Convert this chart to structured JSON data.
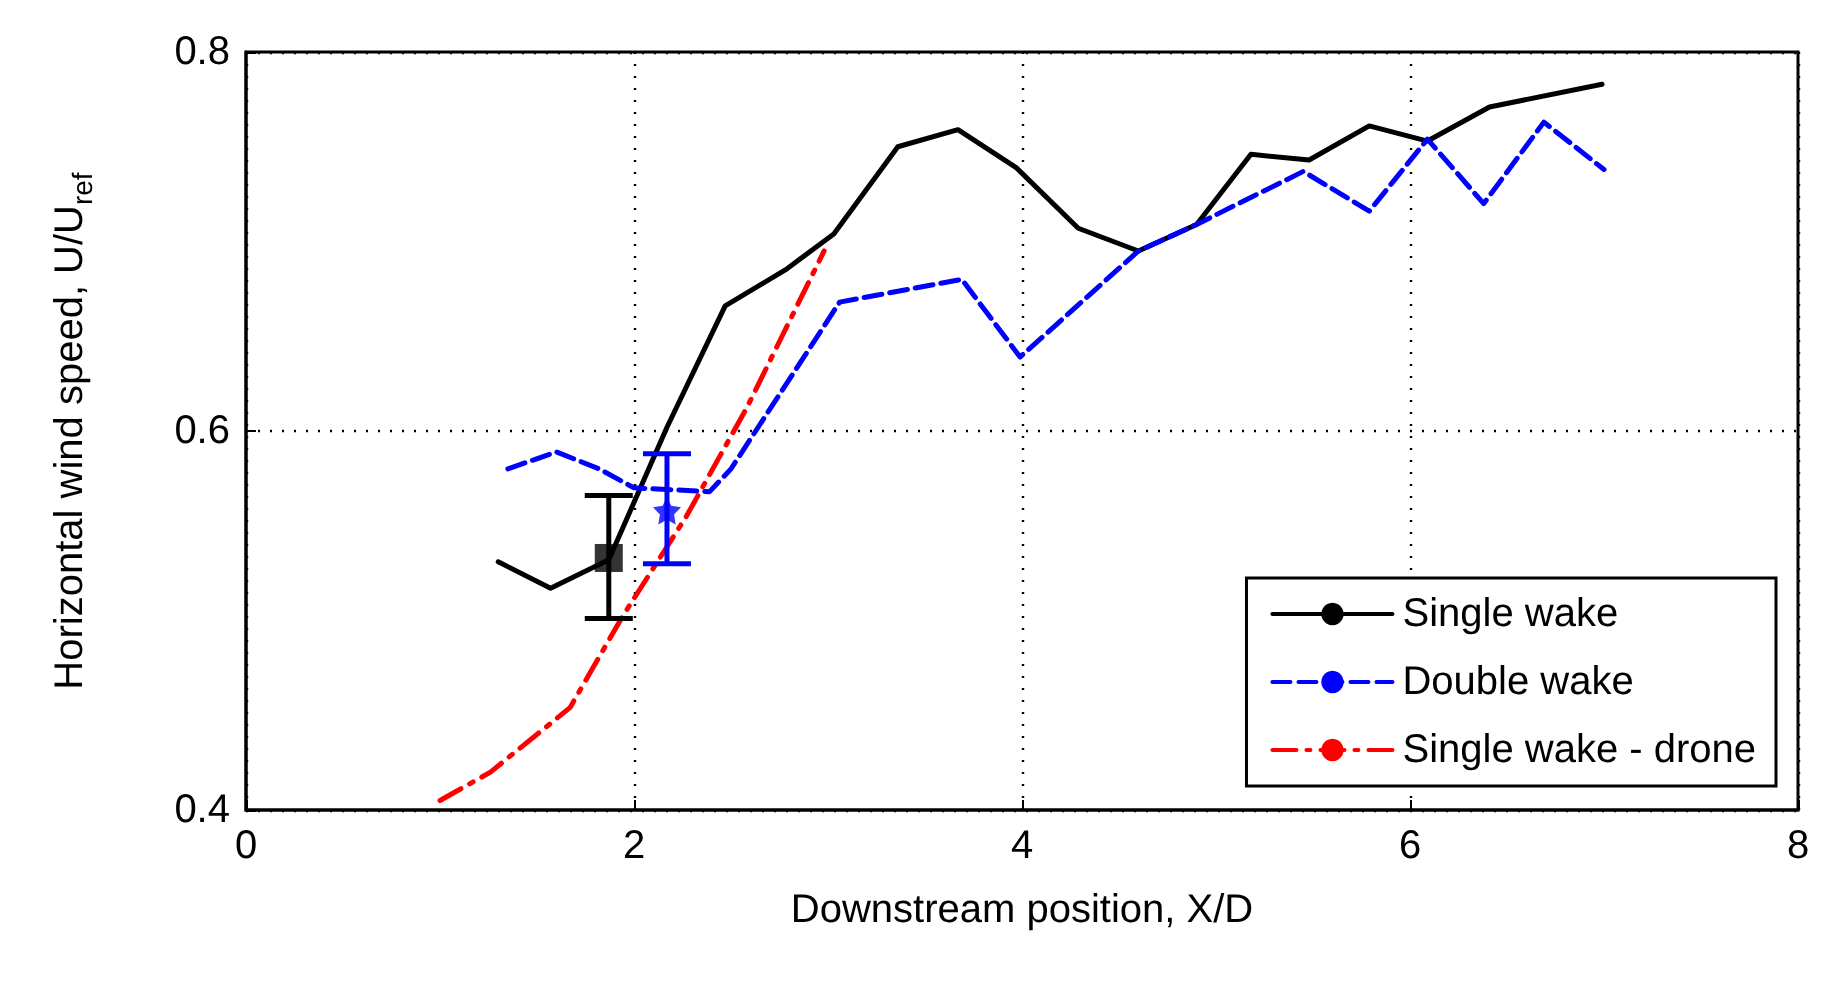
{
  "chart_data": {
    "type": "line",
    "xlabel": "Downstream position, X/D",
    "ylabel": "Horizontal wind speed, U/U$_{ref}$",
    "xlim": [
      0,
      8
    ],
    "xticks": [
      0,
      2,
      4,
      6,
      8
    ],
    "ylim": [
      0.4,
      0.8
    ],
    "yticks": [
      0.4,
      0.6,
      0.8
    ],
    "grid": true,
    "legend": "bottom right",
    "series": [
      {
        "name": "Single wake",
        "color": "#000000",
        "line_style": "solid",
        "x": [
          1.3,
          1.57,
          1.87,
          2.17,
          2.47,
          2.78,
          3.03,
          3.36,
          3.67,
          3.97,
          4.29,
          4.6,
          4.9,
          5.18,
          5.48,
          5.79,
          6.09,
          6.41,
          6.99
        ],
        "values": [
          0.531,
          0.517,
          0.532,
          0.602,
          0.666,
          0.685,
          0.704,
          0.75,
          0.759,
          0.739,
          0.707,
          0.695,
          0.709,
          0.746,
          0.743,
          0.761,
          0.753,
          0.771,
          0.783
        ]
      },
      {
        "name": "Double wake",
        "color": "#0000ff",
        "line_style": "dashed",
        "x": [
          1.35,
          1.6,
          1.82,
          2.0,
          2.39,
          2.5,
          3.06,
          3.69,
          3.99,
          4.6,
          4.9,
          5.45,
          5.79,
          6.09,
          6.38,
          6.69,
          7.0
        ],
        "values": [
          0.58,
          0.589,
          0.58,
          0.57,
          0.568,
          0.58,
          0.668,
          0.68,
          0.639,
          0.695,
          0.709,
          0.737,
          0.716,
          0.754,
          0.72,
          0.763,
          0.738
        ]
      },
      {
        "name": "Single wake - drone",
        "color": "#ff0000",
        "line_style": "dashdot",
        "x": [
          1.0,
          1.26,
          1.67,
          1.94,
          2.27,
          2.58,
          2.98
        ],
        "values": [
          0.405,
          0.42,
          0.454,
          0.502,
          0.555,
          0.612,
          0.695
        ]
      },
      {
        "type": "scatter",
        "color": "#000000",
        "marker": "square",
        "x": [
          1.87
        ],
        "values": [
          0.533
        ],
        "errors": [
          [
            0.501,
            0.566
          ]
        ]
      },
      {
        "type": "scatter",
        "color": "#0000ff",
        "marker": "star",
        "x": [
          2.17
        ],
        "values": [
          0.558
        ],
        "errors": [
          [
            0.53,
            0.588
          ]
        ]
      }
    ]
  }
}
